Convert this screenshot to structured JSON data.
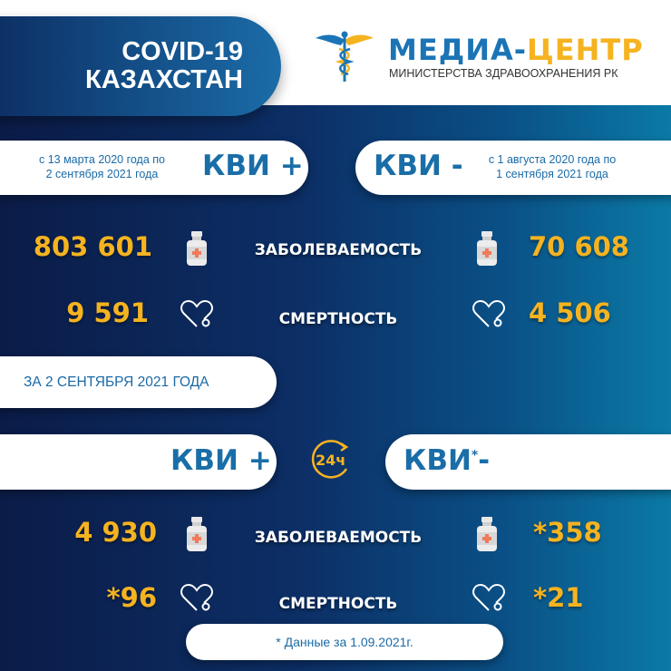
{
  "header": {
    "title_line1": "COVID-19",
    "title_line2": "КАЗАХСТАН",
    "brand_part1": "МЕДИА-",
    "brand_part2": "ЦЕНТР",
    "brand_subtitle": "МИНИСТЕРСТВА ЗДРАВООХРАНЕНИЯ РК",
    "logo_icon": "caduceus-icon"
  },
  "colors": {
    "brand_blue": "#1a74b6",
    "brand_yellow": "#f5b320",
    "bg_dark": "#0b1c48",
    "bg_teal": "#0b7aa6"
  },
  "cumulative": {
    "plus": {
      "label": "КВИ +",
      "period_line1": "с 13 марта 2020 года по",
      "period_line2": "2 сентября 2021 года",
      "cases": "803 601",
      "deaths": "9 591"
    },
    "minus": {
      "label": "КВИ -",
      "period_line1": "с 1 августа 2020 года по",
      "period_line2": "1 сентября 2021 года",
      "cases": "70 608",
      "deaths": "4 506"
    },
    "cases_label": "ЗАБОЛЕВАЕМОСТЬ",
    "deaths_label": "СМЕРТНОСТЬ"
  },
  "daily": {
    "date_label": "ЗА 2 СЕНТЯБРЯ 2021 ГОДА",
    "badge": "24ч",
    "plus": {
      "label": "КВИ +",
      "cases": "4 930",
      "deaths": "*96"
    },
    "minus": {
      "label": "КВИ",
      "asterisk": "*",
      "suffix": "-",
      "cases": "*358",
      "deaths": "*21"
    },
    "cases_label": "ЗАБОЛЕВАЕМОСТЬ",
    "deaths_label": "СМЕРТНОСТЬ",
    "footnote": "* Данные за 1.09.2021г."
  }
}
